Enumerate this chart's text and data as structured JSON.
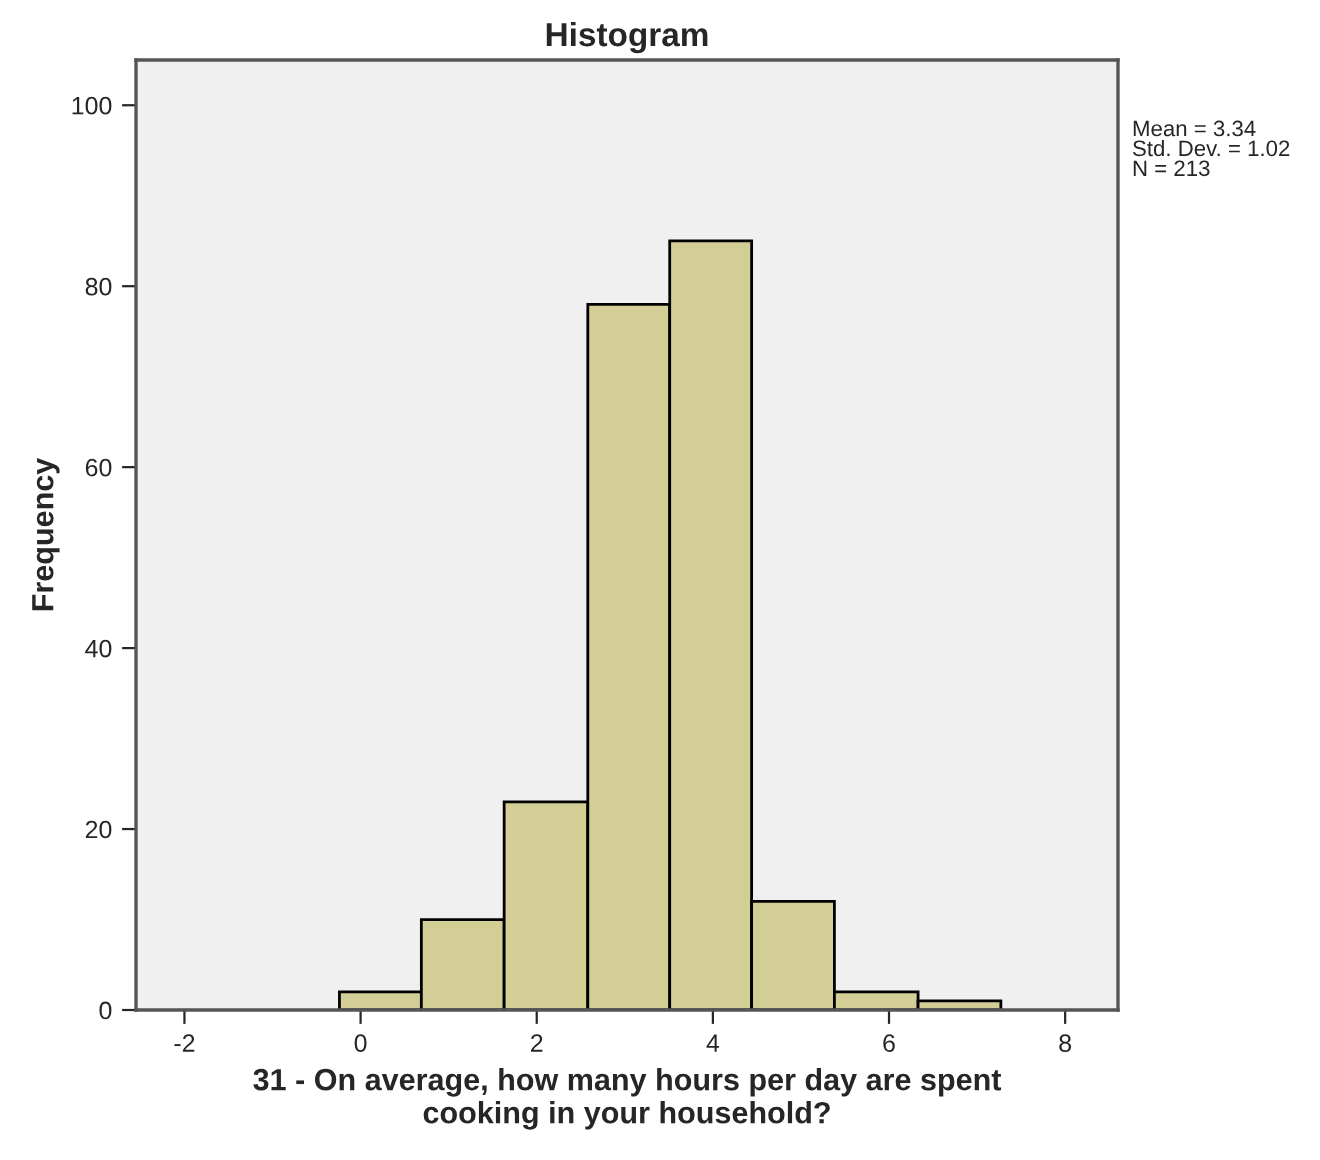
{
  "chart_data": {
    "type": "histogram",
    "title": "Histogram",
    "xlabel": "31 - On average, how many hours per day are spent\ncooking in your household?",
    "ylabel": "Frequency",
    "bins": [
      -0.24,
      0.69,
      1.63,
      2.58,
      3.51,
      4.44,
      5.38,
      6.33,
      7.27
    ],
    "values": [
      2,
      10,
      23,
      78,
      85,
      12,
      2,
      1
    ],
    "color": "#d3cd96",
    "xlim": [
      -2.55,
      8.6
    ],
    "xticks": [
      -2,
      0,
      2,
      4,
      6,
      8
    ],
    "ylim": [
      0,
      105
    ],
    "yticks": [
      0,
      20,
      40,
      60,
      80,
      100
    ],
    "grid": false,
    "annotations": [
      "Mean = 3.34\nStd. Dev. = 1.02\nN = 213"
    ]
  }
}
